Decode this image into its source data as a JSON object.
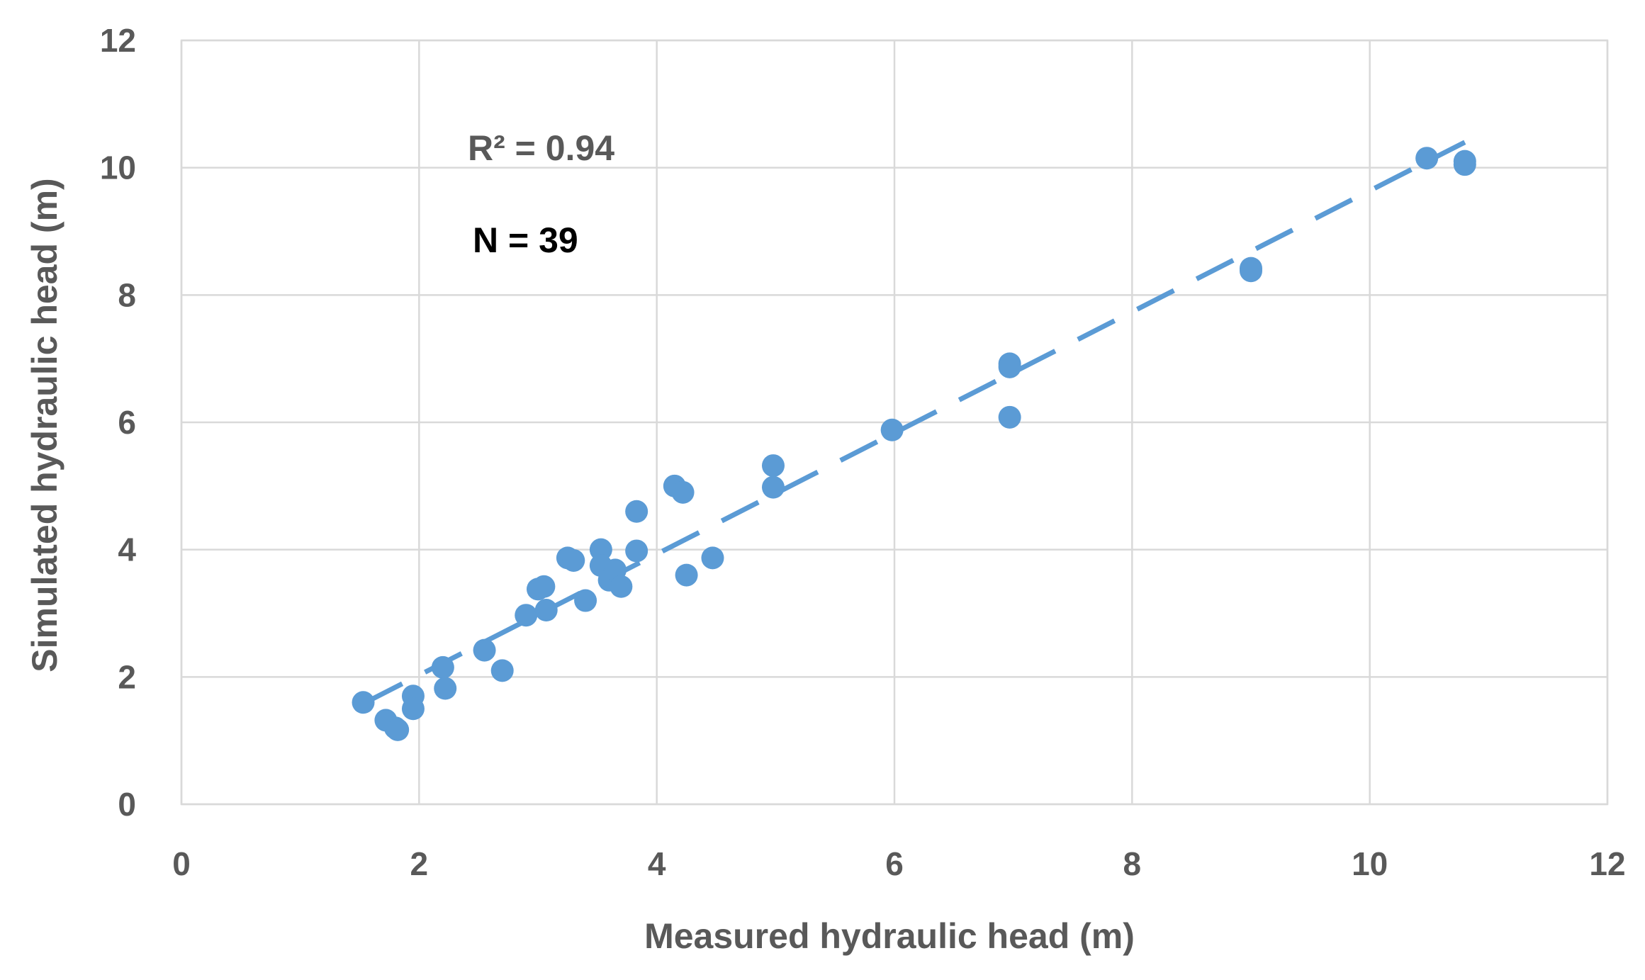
{
  "chart_data": {
    "type": "scatter",
    "title": "",
    "xlabel": "Measured hydraulic head (m)",
    "ylabel": "Simulated hydraulic head (m)",
    "xlim": [
      0,
      12
    ],
    "ylim": [
      0,
      12
    ],
    "xticks": [
      0,
      2,
      4,
      6,
      8,
      10,
      12
    ],
    "yticks": [
      0,
      2,
      4,
      6,
      8,
      10,
      12
    ],
    "grid": true,
    "legend": "none",
    "marker_color": "#5b9bd5",
    "trendline": {
      "style": "dashed",
      "color": "#5b9bd5",
      "x": [
        1.55,
        10.8
      ],
      "y": [
        1.6,
        10.4
      ]
    },
    "annotations": {
      "r2": "R² = 0.94",
      "n": "N = 39"
    },
    "series": [
      {
        "points": [
          [
            1.53,
            1.6
          ],
          [
            1.72,
            1.32
          ],
          [
            1.8,
            1.2
          ],
          [
            1.82,
            1.17
          ],
          [
            1.95,
            1.7
          ],
          [
            1.95,
            1.5
          ],
          [
            2.2,
            2.15
          ],
          [
            2.22,
            1.82
          ],
          [
            2.55,
            2.42
          ],
          [
            2.7,
            2.1
          ],
          [
            2.9,
            2.97
          ],
          [
            3.0,
            3.38
          ],
          [
            3.05,
            3.42
          ],
          [
            3.07,
            3.05
          ],
          [
            3.25,
            3.87
          ],
          [
            3.3,
            3.83
          ],
          [
            3.4,
            3.2
          ],
          [
            3.53,
            4.0
          ],
          [
            3.53,
            3.75
          ],
          [
            3.6,
            3.52
          ],
          [
            3.65,
            3.68
          ],
          [
            3.7,
            3.42
          ],
          [
            3.83,
            4.6
          ],
          [
            3.83,
            3.98
          ],
          [
            4.15,
            5.0
          ],
          [
            4.22,
            4.9
          ],
          [
            4.25,
            3.6
          ],
          [
            4.47,
            3.87
          ],
          [
            4.98,
            5.32
          ],
          [
            4.98,
            4.98
          ],
          [
            5.98,
            5.88
          ],
          [
            6.97,
            6.92
          ],
          [
            6.97,
            6.87
          ],
          [
            6.97,
            6.08
          ],
          [
            9.0,
            8.42
          ],
          [
            9.0,
            8.38
          ],
          [
            10.48,
            10.15
          ],
          [
            10.8,
            10.1
          ],
          [
            10.8,
            10.05
          ]
        ]
      }
    ]
  }
}
